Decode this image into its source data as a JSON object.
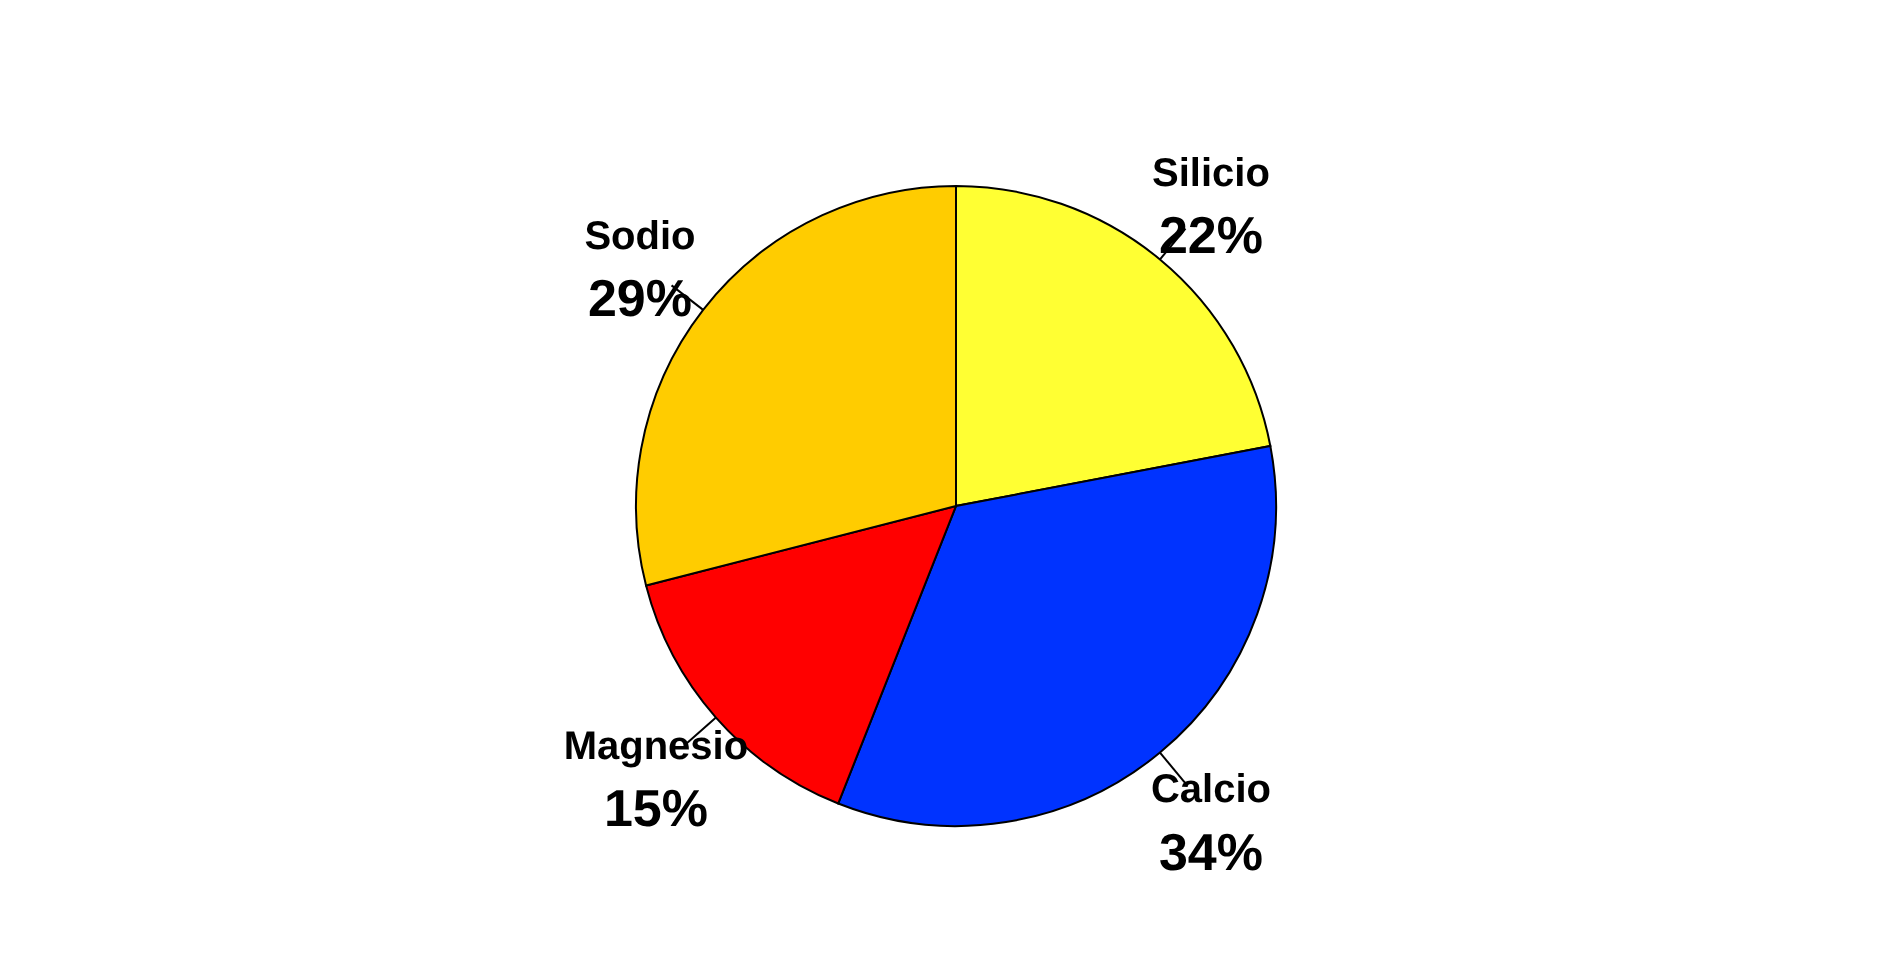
{
  "chart_data": {
    "type": "pie",
    "categories": [
      "Silicio",
      "Calcio",
      "Magnesio",
      "Sodio"
    ],
    "values": [
      22,
      34,
      15,
      29
    ],
    "colors": [
      "#ffff33",
      "#0033ff",
      "#ff0000",
      "#ffcc00"
    ],
    "value_labels": [
      "22%",
      "34%",
      "15%",
      "29%"
    ],
    "legend": false
  }
}
